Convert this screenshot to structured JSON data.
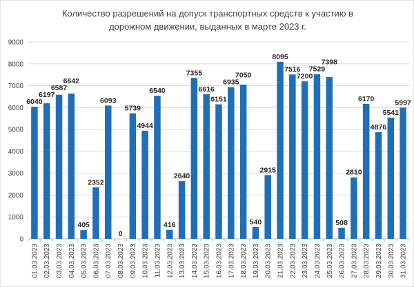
{
  "chart_data": {
    "type": "bar",
    "title": "Количество разрешений на допуск транспортных средств к участию в дорожном движении, выданных в марте 2023 г.",
    "xlabel": "",
    "ylabel": "",
    "ylim": [
      0,
      9000
    ],
    "yticks": [
      0,
      1000,
      2000,
      3000,
      4000,
      5000,
      6000,
      7000,
      8000,
      9000
    ],
    "grid": true,
    "legend": "none",
    "data_labels": true,
    "categories": [
      "01.03.2023",
      "02.03.2023",
      "03.03.2023",
      "04.03.2023",
      "05.03.2023",
      "06.03.2023",
      "07.03.2023",
      "08.03.2023",
      "09.03.2023",
      "10.03.2023",
      "11.03.2023",
      "12.03.2023",
      "13.03.2023",
      "14.03.2023",
      "15.03.2023",
      "16.03.2023",
      "17.03.2023",
      "18.03.2023",
      "19.03.2023",
      "20.03.2023",
      "21.03.2023",
      "22.03.2023",
      "23.03.2023",
      "24.03.2023",
      "25.03.2023",
      "26.03.2023",
      "27.03.2023",
      "28.03.2023",
      "29.03.2023",
      "30.03.2023",
      "31.03.2023"
    ],
    "values": [
      6040,
      6197,
      6587,
      6642,
      405,
      2352,
      6093,
      0,
      5739,
      4944,
      6540,
      416,
      2640,
      7355,
      6616,
      6151,
      6935,
      7050,
      540,
      2915,
      8095,
      7516,
      7200,
      7529,
      7398,
      508,
      2810,
      6170,
      4876,
      5541,
      5997
    ],
    "colors": {
      "bar": "#1F6FB8",
      "gridline": "#D9D9D9",
      "axis_line": "#BFBFBF",
      "tick_text": "#404040",
      "data_label_text": "#262626",
      "title_text": "#3F3F3F",
      "background": "#FFFFFF"
    }
  }
}
